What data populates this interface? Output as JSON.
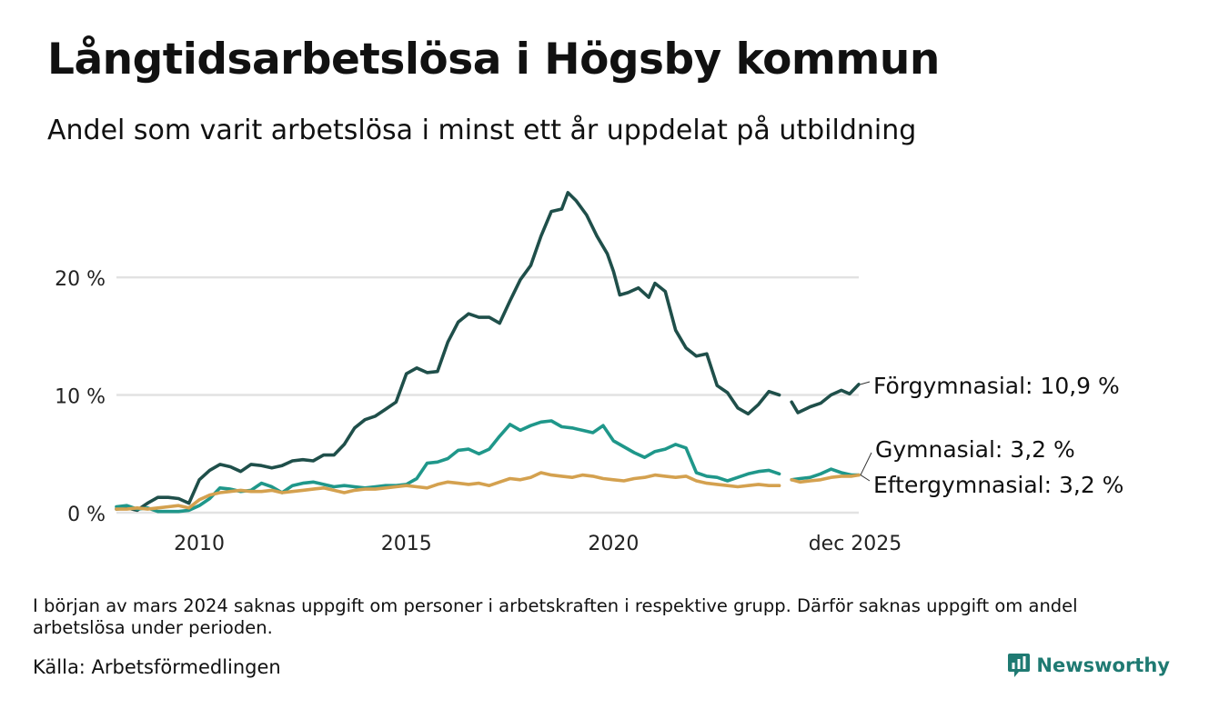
{
  "header": {
    "title": "Långtidsarbetslösa i Högsby kommun",
    "subtitle": "Andel som varit arbetslösa i minst ett år uppdelat på utbildning"
  },
  "footer": {
    "note": "I början av mars 2024 saknas uppgift om personer i arbetskraften i respektive grupp. Därför saknas uppgift om andel arbetslösa under perioden.",
    "source": "Källa: Arbetsförmedlingen",
    "brand": "Newsworthy"
  },
  "chart_data": {
    "type": "line",
    "title": "Långtidsarbetslösa i Högsby kommun",
    "subtitle": "Andel som varit arbetslösa i minst ett år uppdelat på utbildning",
    "xlabel": "",
    "ylabel": "",
    "x_range": [
      2008.0,
      2025.92
    ],
    "ylim": [
      0,
      27.5
    ],
    "x_ticks": [
      {
        "value": 2010,
        "label": "2010"
      },
      {
        "value": 2015,
        "label": "2015"
      },
      {
        "value": 2020,
        "label": "2020"
      },
      {
        "value": 2025.92,
        "label": "dec 2025"
      }
    ],
    "y_ticks": [
      {
        "value": 0,
        "label": "0 %"
      },
      {
        "value": 10,
        "label": "10 %"
      },
      {
        "value": 20,
        "label": "20 %"
      }
    ],
    "gridlines": true,
    "gap": {
      "start": 2024.0,
      "end": 2024.3
    },
    "series": [
      {
        "name": "Förgymnasial",
        "end_label": "Förgymnasial: 10,9 %",
        "color": "#1f4f4a",
        "points": [
          [
            2008.0,
            0.3
          ],
          [
            2008.25,
            0.4
          ],
          [
            2008.5,
            0.2
          ],
          [
            2008.75,
            0.8
          ],
          [
            2009.0,
            1.3
          ],
          [
            2009.25,
            1.3
          ],
          [
            2009.5,
            1.2
          ],
          [
            2009.75,
            0.8
          ],
          [
            2010.0,
            2.8
          ],
          [
            2010.25,
            3.6
          ],
          [
            2010.5,
            4.1
          ],
          [
            2010.75,
            3.9
          ],
          [
            2011.0,
            3.5
          ],
          [
            2011.25,
            4.1
          ],
          [
            2011.5,
            4.0
          ],
          [
            2011.75,
            3.8
          ],
          [
            2012.0,
            4.0
          ],
          [
            2012.25,
            4.4
          ],
          [
            2012.5,
            4.5
          ],
          [
            2012.75,
            4.4
          ],
          [
            2013.0,
            4.9
          ],
          [
            2013.25,
            4.9
          ],
          [
            2013.5,
            5.8
          ],
          [
            2013.75,
            7.2
          ],
          [
            2014.0,
            7.9
          ],
          [
            2014.25,
            8.2
          ],
          [
            2014.5,
            8.8
          ],
          [
            2014.75,
            9.4
          ],
          [
            2015.0,
            11.8
          ],
          [
            2015.25,
            12.3
          ],
          [
            2015.5,
            11.9
          ],
          [
            2015.75,
            12.0
          ],
          [
            2016.0,
            14.5
          ],
          [
            2016.25,
            16.2
          ],
          [
            2016.5,
            16.9
          ],
          [
            2016.75,
            16.6
          ],
          [
            2017.0,
            16.6
          ],
          [
            2017.25,
            16.1
          ],
          [
            2017.5,
            18.0
          ],
          [
            2017.75,
            19.8
          ],
          [
            2018.0,
            21.0
          ],
          [
            2018.25,
            23.5
          ],
          [
            2018.5,
            25.6
          ],
          [
            2018.75,
            25.8
          ],
          [
            2018.9,
            27.2
          ],
          [
            2019.1,
            26.5
          ],
          [
            2019.35,
            25.3
          ],
          [
            2019.6,
            23.5
          ],
          [
            2019.85,
            22.0
          ],
          [
            2020.0,
            20.5
          ],
          [
            2020.15,
            18.5
          ],
          [
            2020.35,
            18.7
          ],
          [
            2020.6,
            19.1
          ],
          [
            2020.85,
            18.3
          ],
          [
            2021.0,
            19.5
          ],
          [
            2021.25,
            18.8
          ],
          [
            2021.5,
            15.5
          ],
          [
            2021.75,
            14.0
          ],
          [
            2022.0,
            13.3
          ],
          [
            2022.25,
            13.5
          ],
          [
            2022.5,
            10.8
          ],
          [
            2022.75,
            10.2
          ],
          [
            2023.0,
            8.9
          ],
          [
            2023.25,
            8.4
          ],
          [
            2023.5,
            9.2
          ],
          [
            2023.75,
            10.3
          ],
          [
            2024.0,
            10.0
          ],
          [
            2024.3,
            9.4
          ],
          [
            2024.45,
            8.5
          ],
          [
            2024.75,
            9.0
          ],
          [
            2025.0,
            9.3
          ],
          [
            2025.25,
            10.0
          ],
          [
            2025.5,
            10.4
          ],
          [
            2025.7,
            10.1
          ],
          [
            2025.92,
            10.9
          ]
        ]
      },
      {
        "name": "Gymnasial",
        "end_label": "Gymnasial:  3,2 %",
        "color": "#1f978a",
        "points": [
          [
            2008.0,
            0.5
          ],
          [
            2008.25,
            0.6
          ],
          [
            2008.5,
            0.3
          ],
          [
            2008.75,
            0.4
          ],
          [
            2009.0,
            0.1
          ],
          [
            2009.25,
            0.1
          ],
          [
            2009.5,
            0.1
          ],
          [
            2009.75,
            0.2
          ],
          [
            2010.0,
            0.6
          ],
          [
            2010.25,
            1.2
          ],
          [
            2010.5,
            2.1
          ],
          [
            2010.75,
            2.0
          ],
          [
            2011.0,
            1.8
          ],
          [
            2011.25,
            1.9
          ],
          [
            2011.5,
            2.5
          ],
          [
            2011.75,
            2.2
          ],
          [
            2012.0,
            1.7
          ],
          [
            2012.25,
            2.3
          ],
          [
            2012.5,
            2.5
          ],
          [
            2012.75,
            2.6
          ],
          [
            2013.0,
            2.4
          ],
          [
            2013.25,
            2.2
          ],
          [
            2013.5,
            2.3
          ],
          [
            2013.75,
            2.2
          ],
          [
            2014.0,
            2.1
          ],
          [
            2014.25,
            2.2
          ],
          [
            2014.5,
            2.3
          ],
          [
            2014.75,
            2.3
          ],
          [
            2015.0,
            2.4
          ],
          [
            2015.25,
            2.9
          ],
          [
            2015.5,
            4.2
          ],
          [
            2015.75,
            4.3
          ],
          [
            2016.0,
            4.6
          ],
          [
            2016.25,
            5.3
          ],
          [
            2016.5,
            5.4
          ],
          [
            2016.75,
            5.0
          ],
          [
            2017.0,
            5.4
          ],
          [
            2017.25,
            6.5
          ],
          [
            2017.5,
            7.5
          ],
          [
            2017.75,
            7.0
          ],
          [
            2018.0,
            7.4
          ],
          [
            2018.25,
            7.7
          ],
          [
            2018.5,
            7.8
          ],
          [
            2018.75,
            7.3
          ],
          [
            2019.0,
            7.2
          ],
          [
            2019.25,
            7.0
          ],
          [
            2019.5,
            6.8
          ],
          [
            2019.75,
            7.4
          ],
          [
            2020.0,
            6.1
          ],
          [
            2020.25,
            5.6
          ],
          [
            2020.5,
            5.1
          ],
          [
            2020.75,
            4.7
          ],
          [
            2021.0,
            5.2
          ],
          [
            2021.25,
            5.4
          ],
          [
            2021.5,
            5.8
          ],
          [
            2021.75,
            5.5
          ],
          [
            2022.0,
            3.4
          ],
          [
            2022.25,
            3.1
          ],
          [
            2022.5,
            3.0
          ],
          [
            2022.75,
            2.7
          ],
          [
            2023.0,
            3.0
          ],
          [
            2023.25,
            3.3
          ],
          [
            2023.5,
            3.5
          ],
          [
            2023.75,
            3.6
          ],
          [
            2024.0,
            3.3
          ],
          [
            2024.3,
            2.8
          ],
          [
            2024.5,
            2.9
          ],
          [
            2024.75,
            3.0
          ],
          [
            2025.0,
            3.3
          ],
          [
            2025.25,
            3.7
          ],
          [
            2025.5,
            3.4
          ],
          [
            2025.75,
            3.2
          ],
          [
            2025.92,
            3.2
          ]
        ]
      },
      {
        "name": "Eftergymnasial",
        "end_label": "Eftergymnasial:  3,2 %",
        "color": "#d4a14f",
        "points": [
          [
            2008.0,
            0.3
          ],
          [
            2008.25,
            0.3
          ],
          [
            2008.5,
            0.4
          ],
          [
            2008.75,
            0.3
          ],
          [
            2009.0,
            0.4
          ],
          [
            2009.25,
            0.5
          ],
          [
            2009.5,
            0.6
          ],
          [
            2009.75,
            0.4
          ],
          [
            2010.0,
            1.1
          ],
          [
            2010.25,
            1.5
          ],
          [
            2010.5,
            1.7
          ],
          [
            2010.75,
            1.8
          ],
          [
            2011.0,
            1.9
          ],
          [
            2011.25,
            1.8
          ],
          [
            2011.5,
            1.8
          ],
          [
            2011.75,
            1.9
          ],
          [
            2012.0,
            1.7
          ],
          [
            2012.25,
            1.8
          ],
          [
            2012.5,
            1.9
          ],
          [
            2012.75,
            2.0
          ],
          [
            2013.0,
            2.1
          ],
          [
            2013.25,
            1.9
          ],
          [
            2013.5,
            1.7
          ],
          [
            2013.75,
            1.9
          ],
          [
            2014.0,
            2.0
          ],
          [
            2014.25,
            2.0
          ],
          [
            2014.5,
            2.1
          ],
          [
            2014.75,
            2.2
          ],
          [
            2015.0,
            2.3
          ],
          [
            2015.25,
            2.2
          ],
          [
            2015.5,
            2.1
          ],
          [
            2015.75,
            2.4
          ],
          [
            2016.0,
            2.6
          ],
          [
            2016.25,
            2.5
          ],
          [
            2016.5,
            2.4
          ],
          [
            2016.75,
            2.5
          ],
          [
            2017.0,
            2.3
          ],
          [
            2017.25,
            2.6
          ],
          [
            2017.5,
            2.9
          ],
          [
            2017.75,
            2.8
          ],
          [
            2018.0,
            3.0
          ],
          [
            2018.25,
            3.4
          ],
          [
            2018.5,
            3.2
          ],
          [
            2018.75,
            3.1
          ],
          [
            2019.0,
            3.0
          ],
          [
            2019.25,
            3.2
          ],
          [
            2019.5,
            3.1
          ],
          [
            2019.75,
            2.9
          ],
          [
            2020.0,
            2.8
          ],
          [
            2020.25,
            2.7
          ],
          [
            2020.5,
            2.9
          ],
          [
            2020.75,
            3.0
          ],
          [
            2021.0,
            3.2
          ],
          [
            2021.25,
            3.1
          ],
          [
            2021.5,
            3.0
          ],
          [
            2021.75,
            3.1
          ],
          [
            2022.0,
            2.7
          ],
          [
            2022.25,
            2.5
          ],
          [
            2022.5,
            2.4
          ],
          [
            2022.75,
            2.3
          ],
          [
            2023.0,
            2.2
          ],
          [
            2023.25,
            2.3
          ],
          [
            2023.5,
            2.4
          ],
          [
            2023.75,
            2.3
          ],
          [
            2024.0,
            2.3
          ],
          [
            2024.3,
            2.8
          ],
          [
            2024.5,
            2.6
          ],
          [
            2024.75,
            2.7
          ],
          [
            2025.0,
            2.8
          ],
          [
            2025.25,
            3.0
          ],
          [
            2025.5,
            3.1
          ],
          [
            2025.75,
            3.1
          ],
          [
            2025.92,
            3.2
          ]
        ]
      }
    ]
  }
}
